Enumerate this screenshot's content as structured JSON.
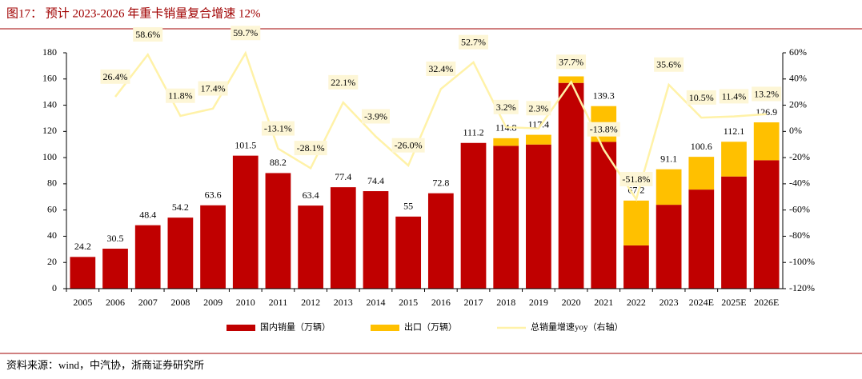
{
  "title": "图17： 预计 2023-2026 年重卡销量复合增速 12%",
  "source": "资料来源：wind，中汽协，浙商证券研究所",
  "chart_data": {
    "type": "bar",
    "categories": [
      "2005",
      "2006",
      "2007",
      "2008",
      "2009",
      "2010",
      "2011",
      "2012",
      "2013",
      "2014",
      "2015",
      "2016",
      "2017",
      "2018",
      "2019",
      "2020",
      "2021",
      "2022",
      "2023",
      "2024E",
      "2025E",
      "2026E"
    ],
    "series": [
      {
        "name": "国内销量（万辆）",
        "color": "#c00000",
        "values": [
          24.2,
          30.5,
          48.4,
          54.2,
          63.6,
          101.5,
          88.2,
          63.4,
          77.4,
          74.4,
          55.0,
          72.8,
          111.2,
          109,
          110,
          157,
          112,
          33,
          64,
          75.6,
          85.6,
          98
        ]
      },
      {
        "name": "出口（万辆）",
        "color": "#ffc000",
        "values": [
          0,
          0,
          0,
          0,
          0,
          0,
          0,
          0,
          0,
          0,
          0,
          0,
          0,
          5.8,
          7.4,
          5,
          27.3,
          34.2,
          27.1,
          25,
          26.5,
          28.9
        ]
      },
      {
        "name": "总销量增速yoy（右轴）",
        "type": "line",
        "axis": "y2",
        "color": "#fff2a8",
        "values": [
          null,
          26.4,
          58.6,
          11.8,
          17.4,
          59.7,
          -13.1,
          -28.1,
          22.1,
          -3.9,
          -26.0,
          32.4,
          52.7,
          3.2,
          2.3,
          37.7,
          -13.8,
          -51.8,
          35.6,
          10.5,
          11.4,
          13.2
        ],
        "value_labels": [
          null,
          "26.4%",
          "58.6%",
          "11.8%",
          "17.4%",
          "59.7%",
          "-13.1%",
          "-28.1%",
          "22.1%",
          "-3.9%",
          "-26.0%",
          "32.4%",
          "52.7%",
          "3.2%",
          "2.3%",
          "37.7%",
          "-13.8%",
          "-51.8%",
          "35.6%",
          "10.5%",
          "11.4%",
          "13.2%"
        ]
      }
    ],
    "totals": [
      24.2,
      30.5,
      48.4,
      54.2,
      63.6,
      101.5,
      88.2,
      63.4,
      77.4,
      74.4,
      55.0,
      72.8,
      111.2,
      114.8,
      117.4,
      null,
      139.3,
      67.2,
      91.1,
      100.6,
      112.1,
      126.9
    ],
    "ylim": [
      0,
      180
    ],
    "yticks": [
      0,
      20,
      40,
      60,
      80,
      100,
      120,
      140,
      160,
      180
    ],
    "y2lim": [
      -120,
      60
    ],
    "y2ticks": [
      {
        "value": -120,
        "label": "-120%"
      },
      {
        "value": -100,
        "label": "-100%"
      },
      {
        "value": -80,
        "label": "-80%"
      },
      {
        "value": -60,
        "label": "-60%"
      },
      {
        "value": -40,
        "label": "-40%"
      },
      {
        "value": -20,
        "label": "-20%"
      },
      {
        "value": 0,
        "label": "0%"
      },
      {
        "value": 20,
        "label": "20%"
      },
      {
        "value": 40,
        "label": "40%"
      },
      {
        "value": 60,
        "label": "60%"
      }
    ]
  }
}
